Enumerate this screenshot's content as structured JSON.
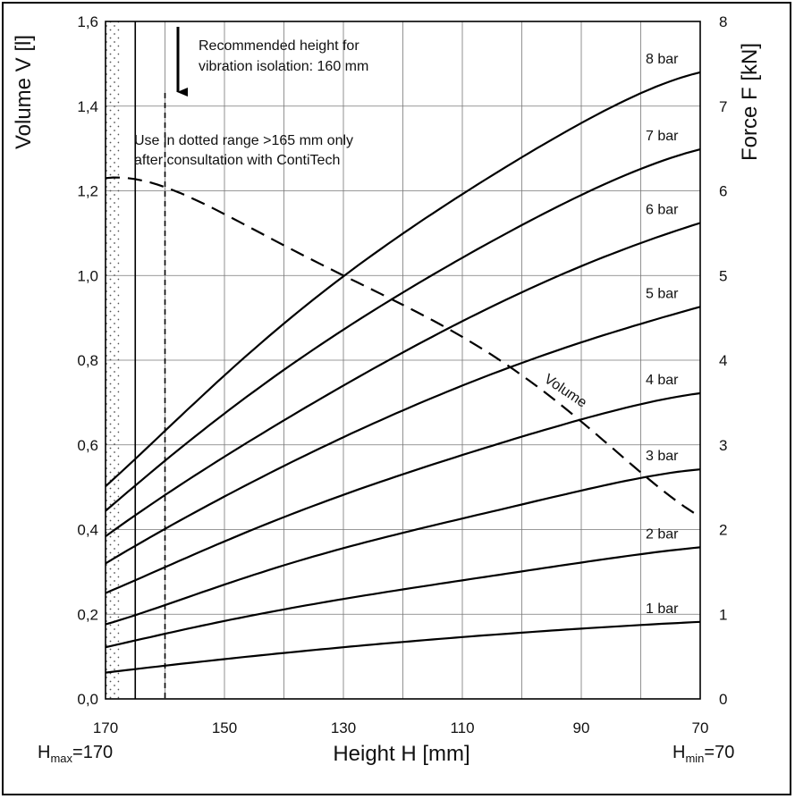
{
  "chart_data": {
    "type": "line",
    "xlabel": "Height H [mm]",
    "ylabel_left": "Volume V [l]",
    "ylabel_right": "Force F [kN]",
    "x_axis": {
      "range": [
        170,
        70
      ],
      "reversed": true,
      "ticks": [
        "170",
        "150",
        "130",
        "110",
        "90",
        "70"
      ],
      "tick_values": [
        170,
        150,
        130,
        110,
        90,
        70
      ]
    },
    "y_left_axis": {
      "range": [
        0,
        1.6
      ],
      "ticks": [
        "0,0",
        "0,2",
        "0,4",
        "0,6",
        "0,8",
        "1,0",
        "1,2",
        "1,4",
        "1,6"
      ],
      "tick_values": [
        0,
        0.2,
        0.4,
        0.6,
        0.8,
        1.0,
        1.2,
        1.4,
        1.6
      ]
    },
    "y_right_axis": {
      "range": [
        0,
        8
      ],
      "ticks": [
        "0",
        "1",
        "2",
        "3",
        "4",
        "5",
        "6",
        "7",
        "8"
      ],
      "tick_values": [
        0,
        1,
        2,
        3,
        4,
        5,
        6,
        7,
        8
      ]
    },
    "grid": true,
    "x_grid_values": [
      170,
      160,
      150,
      140,
      130,
      120,
      110,
      100,
      90,
      80,
      70
    ],
    "h_max_label": {
      "main": "H",
      "sub": "max",
      "suffix": "=170"
    },
    "h_min_label": {
      "main": "H",
      "sub": "min",
      "suffix": "=70"
    },
    "force_series": [
      {
        "name": "1 bar",
        "x": [
          170,
          150,
          130,
          110,
          90,
          70
        ],
        "y": [
          0.31,
          0.47,
          0.61,
          0.73,
          0.83,
          0.91
        ]
      },
      {
        "name": "2 bar",
        "x": [
          170,
          150,
          130,
          110,
          90,
          70
        ],
        "y": [
          0.61,
          0.92,
          1.18,
          1.4,
          1.61,
          1.79
        ]
      },
      {
        "name": "3 bar",
        "x": [
          170,
          150,
          130,
          110,
          90,
          70
        ],
        "y": [
          0.88,
          1.35,
          1.78,
          2.13,
          2.46,
          2.71
        ]
      },
      {
        "name": "4 bar",
        "x": [
          170,
          150,
          130,
          110,
          90,
          70
        ],
        "y": [
          1.25,
          1.86,
          2.41,
          2.88,
          3.3,
          3.61
        ]
      },
      {
        "name": "5 bar",
        "x": [
          170,
          150,
          130,
          110,
          90,
          70
        ],
        "y": [
          1.6,
          2.39,
          3.09,
          3.7,
          4.21,
          4.63
        ]
      },
      {
        "name": "6 bar",
        "x": [
          170,
          150,
          130,
          110,
          90,
          70
        ],
        "y": [
          1.92,
          2.86,
          3.7,
          4.46,
          5.11,
          5.62
        ]
      },
      {
        "name": "7 bar",
        "x": [
          170,
          150,
          130,
          110,
          90,
          70
        ],
        "y": [
          2.22,
          3.37,
          4.36,
          5.21,
          5.95,
          6.49
        ]
      },
      {
        "name": "8 bar",
        "x": [
          170,
          150,
          130,
          110,
          90,
          70
        ],
        "y": [
          2.51,
          3.82,
          4.99,
          5.96,
          6.8,
          7.4
        ]
      }
    ],
    "volume_series": {
      "name": "Volume",
      "x": [
        170,
        150,
        130,
        110,
        90,
        70
      ],
      "y": [
        1.23,
        1.145,
        1.0,
        0.855,
        0.655,
        0.43
      ]
    },
    "vertical_markers": [
      {
        "x": 165,
        "style": "solid"
      },
      {
        "x": 160,
        "style": "dashed"
      }
    ],
    "dotted_range": [
      170,
      165
    ],
    "annotations": {
      "recommended_line1": "Recommended height for",
      "recommended_line2": "vibration isolation: 160 mm",
      "dotted_line1": "Use in dotted range >165 mm only",
      "dotted_line2": "after consultation with ContiTech"
    }
  }
}
